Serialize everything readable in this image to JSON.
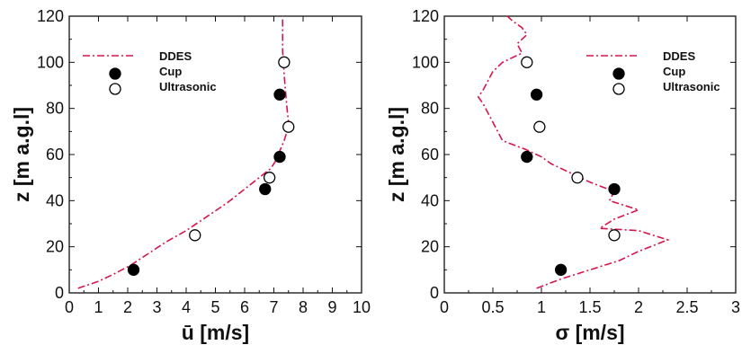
{
  "colors": {
    "ddes": "#d6154a",
    "axis": "#111111"
  },
  "chart_data": [
    {
      "type": "scatter",
      "xlabel": "ū [m/s]",
      "ylabel": "z [m a.g.l]",
      "xlim": [
        0,
        10
      ],
      "ylim": [
        0,
        120
      ],
      "xticks": [
        0,
        1,
        2,
        3,
        4,
        5,
        6,
        7,
        8,
        9,
        10
      ],
      "yticks": [
        0,
        20,
        40,
        60,
        80,
        100,
        120
      ],
      "legend_position": "top-left",
      "series": [
        {
          "name": "DDES",
          "style": "dash-dot-line",
          "x": [
            0.3,
            1.0,
            1.5,
            2.1,
            2.7,
            3.3,
            4.0,
            4.7,
            5.4,
            6.0,
            6.5,
            6.9,
            7.05,
            7.15,
            7.25,
            7.35,
            7.45,
            7.5,
            7.45,
            7.4,
            7.35,
            7.3,
            7.3,
            7.3
          ],
          "y": [
            2,
            5,
            8,
            12,
            17,
            22,
            27,
            33,
            39,
            45,
            50,
            54,
            57,
            60,
            63,
            66,
            70,
            74,
            80,
            87,
            95,
            105,
            113,
            120
          ]
        },
        {
          "name": "Cup",
          "style": "filled-circle",
          "x": [
            2.2,
            6.7,
            7.2,
            7.2
          ],
          "y": [
            10,
            45,
            59,
            86
          ]
        },
        {
          "name": "Ultrasonic",
          "style": "open-circle",
          "x": [
            4.3,
            6.85,
            7.5,
            7.35
          ],
          "y": [
            25,
            50,
            72,
            100
          ]
        }
      ]
    },
    {
      "type": "scatter",
      "xlabel": "σ [m/s]",
      "ylabel": "z [m a.g.l]",
      "xlim": [
        0,
        3
      ],
      "ylim": [
        0,
        120
      ],
      "xticks": [
        0,
        0.5,
        1,
        1.5,
        2,
        2.5,
        3
      ],
      "yticks": [
        0,
        20,
        40,
        60,
        80,
        100,
        120
      ],
      "legend_position": "top-right",
      "series": [
        {
          "name": "DDES",
          "style": "dash-dot-line",
          "x": [
            0.95,
            1.2,
            1.5,
            1.8,
            2.0,
            2.3,
            2.0,
            1.6,
            1.75,
            2.0,
            1.7,
            1.75,
            1.5,
            1.3,
            1.1,
            1.0,
            0.85,
            0.6,
            0.55,
            0.5,
            0.45,
            0.4,
            0.35,
            0.4,
            0.45,
            0.5,
            0.6,
            0.8,
            0.75,
            0.85,
            0.8,
            0.7,
            0.65
          ],
          "y": [
            2,
            6,
            10,
            14,
            18,
            23,
            27,
            28,
            32,
            36,
            40,
            44,
            48,
            52,
            56,
            59,
            62,
            66,
            70,
            74,
            78,
            82,
            85,
            88,
            92,
            96,
            100,
            104,
            108,
            112,
            115,
            118,
            120
          ]
        },
        {
          "name": "Cup",
          "style": "filled-circle",
          "x": [
            1.2,
            1.75,
            0.85,
            0.95
          ],
          "y": [
            10,
            45,
            59,
            86
          ]
        },
        {
          "name": "Ultrasonic",
          "style": "open-circle",
          "x": [
            1.75,
            1.37,
            0.98,
            0.85
          ],
          "y": [
            25,
            50,
            72,
            100
          ]
        }
      ]
    }
  ]
}
